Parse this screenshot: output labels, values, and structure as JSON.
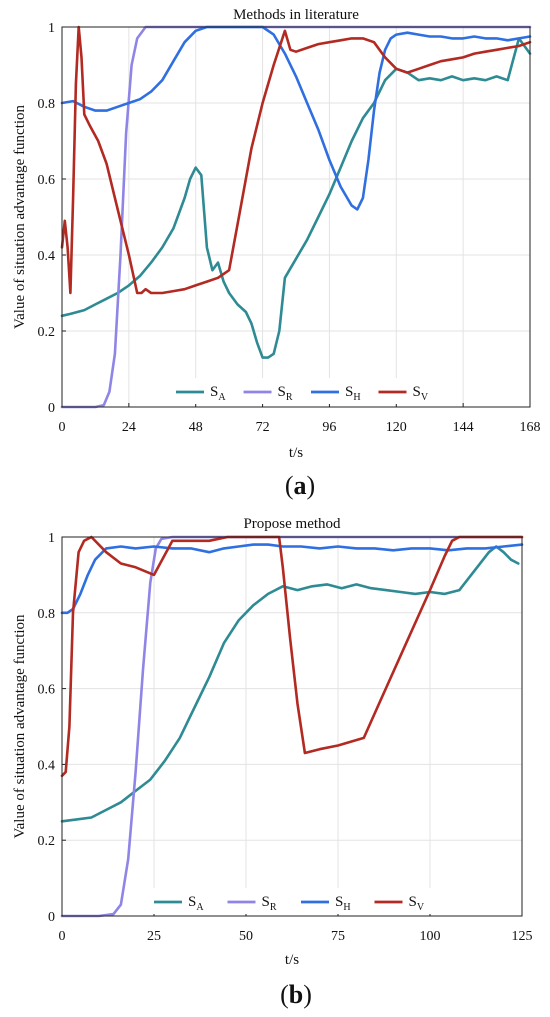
{
  "chart_data": [
    {
      "type": "line",
      "title": "Methods in literature",
      "xlabel": "t/s",
      "ylabel": "Value of situation advantage function",
      "panel_label": "a",
      "xlim": [
        0,
        168
      ],
      "ylim": [
        0,
        1
      ],
      "xticks": [
        "0",
        "24",
        "48",
        "72",
        "96",
        "120",
        "144",
        "168"
      ],
      "yticks": [
        "0",
        "0.2",
        "0.4",
        "0.6",
        "0.8",
        "1"
      ],
      "grid": true,
      "legend_position": "bottom-center",
      "series": [
        {
          "name": "S",
          "subscript": "A",
          "color": "#2e8b94",
          "x": [
            0,
            3,
            8,
            12,
            16,
            20,
            24,
            28,
            32,
            36,
            40,
            44,
            46,
            48,
            50,
            52,
            54,
            56,
            58,
            60,
            63,
            66,
            68,
            70,
            72,
            74,
            76,
            78,
            80,
            84,
            88,
            92,
            96,
            100,
            104,
            108,
            112,
            116,
            120,
            124,
            128,
            132,
            136,
            140,
            144,
            148,
            152,
            156,
            160,
            164,
            168
          ],
          "y": [
            0.24,
            0.245,
            0.255,
            0.27,
            0.285,
            0.3,
            0.32,
            0.345,
            0.38,
            0.42,
            0.47,
            0.55,
            0.6,
            0.63,
            0.61,
            0.42,
            0.36,
            0.38,
            0.33,
            0.3,
            0.27,
            0.25,
            0.22,
            0.17,
            0.13,
            0.13,
            0.14,
            0.2,
            0.34,
            0.39,
            0.44,
            0.5,
            0.56,
            0.63,
            0.7,
            0.76,
            0.8,
            0.86,
            0.89,
            0.88,
            0.86,
            0.865,
            0.86,
            0.87,
            0.86,
            0.865,
            0.86,
            0.87,
            0.86,
            0.97,
            0.93
          ]
        },
        {
          "name": "S",
          "subscript": "R",
          "color": "#8f85e6",
          "x": [
            0,
            6,
            12,
            15,
            17,
            19,
            21,
            23,
            25,
            27,
            30,
            35,
            168
          ],
          "y": [
            0,
            0,
            0,
            0.005,
            0.04,
            0.14,
            0.4,
            0.72,
            0.9,
            0.97,
            1,
            1,
            1
          ]
        },
        {
          "name": "S",
          "subscript": "H",
          "color": "#2f6fe0",
          "x": [
            0,
            4,
            8,
            12,
            16,
            20,
            24,
            28,
            32,
            36,
            40,
            44,
            48,
            52,
            56,
            60,
            64,
            68,
            72,
            76,
            80,
            84,
            88,
            92,
            96,
            100,
            104,
            106,
            108,
            110,
            112,
            114,
            116,
            118,
            120,
            124,
            128,
            132,
            136,
            140,
            144,
            148,
            152,
            156,
            160,
            164,
            168
          ],
          "y": [
            0.8,
            0.805,
            0.79,
            0.78,
            0.78,
            0.79,
            0.8,
            0.81,
            0.83,
            0.86,
            0.91,
            0.96,
            0.99,
            1,
            1,
            1,
            1,
            1,
            1,
            0.98,
            0.93,
            0.87,
            0.8,
            0.73,
            0.65,
            0.58,
            0.53,
            0.52,
            0.55,
            0.65,
            0.78,
            0.88,
            0.94,
            0.97,
            0.98,
            0.985,
            0.98,
            0.975,
            0.975,
            0.97,
            0.97,
            0.975,
            0.97,
            0.97,
            0.965,
            0.97,
            0.975
          ]
        },
        {
          "name": "S",
          "subscript": "V",
          "color": "#b22a22",
          "x": [
            0,
            1,
            2,
            3,
            4,
            5,
            6,
            7,
            8,
            10,
            13,
            16,
            20,
            24,
            27,
            28.5,
            30,
            32,
            36,
            40,
            44,
            48,
            52,
            56,
            60,
            64,
            68,
            72,
            76,
            80,
            82,
            84,
            88,
            92,
            96,
            100,
            104,
            108,
            112,
            116,
            120,
            124,
            128,
            132,
            136,
            140,
            144,
            148,
            152,
            156,
            160,
            164,
            168
          ],
          "y": [
            0.42,
            0.49,
            0.42,
            0.3,
            0.55,
            0.85,
            1,
            0.92,
            0.77,
            0.74,
            0.7,
            0.64,
            0.52,
            0.4,
            0.3,
            0.3,
            0.31,
            0.3,
            0.3,
            0.305,
            0.31,
            0.32,
            0.33,
            0.34,
            0.36,
            0.52,
            0.68,
            0.8,
            0.9,
            0.99,
            0.94,
            0.935,
            0.945,
            0.955,
            0.96,
            0.965,
            0.97,
            0.97,
            0.96,
            0.92,
            0.89,
            0.88,
            0.89,
            0.9,
            0.91,
            0.915,
            0.92,
            0.93,
            0.935,
            0.94,
            0.945,
            0.95,
            0.96
          ]
        }
      ]
    },
    {
      "type": "line",
      "title": "Propose method",
      "xlabel": "t/s",
      "ylabel": "Value of situation advantage function",
      "panel_label": "b",
      "xlim": [
        0,
        125
      ],
      "ylim": [
        0,
        1
      ],
      "xticks": [
        "0",
        "25",
        "50",
        "75",
        "100",
        "125"
      ],
      "yticks": [
        "0",
        "0.2",
        "0.4",
        "0.6",
        "0.8",
        "1"
      ],
      "grid": true,
      "legend_position": "bottom-center",
      "series": [
        {
          "name": "S",
          "subscript": "A",
          "color": "#2e8b94",
          "x": [
            0,
            4,
            8,
            12,
            16,
            20,
            24,
            28,
            32,
            36,
            40,
            44,
            48,
            52,
            56,
            58,
            60,
            64,
            68,
            72,
            76,
            80,
            84,
            88,
            92,
            96,
            100,
            104,
            108,
            112,
            116,
            118,
            120,
            122,
            124
          ],
          "y": [
            0.25,
            0.255,
            0.26,
            0.28,
            0.3,
            0.33,
            0.36,
            0.41,
            0.47,
            0.55,
            0.63,
            0.72,
            0.78,
            0.82,
            0.85,
            0.86,
            0.87,
            0.86,
            0.87,
            0.875,
            0.865,
            0.875,
            0.865,
            0.86,
            0.855,
            0.85,
            0.855,
            0.85,
            0.86,
            0.91,
            0.96,
            0.975,
            0.96,
            0.94,
            0.93
          ]
        },
        {
          "name": "S",
          "subscript": "R",
          "color": "#8f85e6",
          "x": [
            0,
            10,
            14,
            16,
            18,
            20,
            22,
            24,
            25.5,
            27,
            30,
            125
          ],
          "y": [
            0,
            0,
            0.005,
            0.03,
            0.15,
            0.38,
            0.65,
            0.88,
            0.97,
            0.995,
            1,
            1
          ]
        },
        {
          "name": "S",
          "subscript": "H",
          "color": "#2f6fe0",
          "x": [
            0,
            1.5,
            3,
            5,
            7,
            9,
            12,
            16,
            20,
            25,
            30,
            35,
            40,
            44,
            48,
            52,
            56,
            60,
            65,
            70,
            75,
            80,
            85,
            90,
            95,
            100,
            105,
            110,
            115,
            120,
            125
          ],
          "y": [
            0.8,
            0.8,
            0.81,
            0.85,
            0.9,
            0.94,
            0.97,
            0.975,
            0.97,
            0.975,
            0.97,
            0.97,
            0.96,
            0.97,
            0.975,
            0.98,
            0.98,
            0.975,
            0.975,
            0.97,
            0.975,
            0.97,
            0.97,
            0.965,
            0.97,
            0.97,
            0.965,
            0.97,
            0.97,
            0.975,
            0.98
          ]
        },
        {
          "name": "S",
          "subscript": "V",
          "color": "#b22a22",
          "x": [
            0,
            1,
            2,
            3,
            4.5,
            6,
            8,
            12,
            16,
            20,
            25,
            30,
            35,
            40,
            45,
            50,
            55,
            59,
            60,
            62,
            64,
            66,
            70,
            75,
            82,
            88,
            94,
            100,
            104,
            106,
            108,
            115,
            125
          ],
          "y": [
            0.37,
            0.38,
            0.5,
            0.8,
            0.96,
            0.99,
            1,
            0.96,
            0.93,
            0.92,
            0.9,
            0.99,
            0.99,
            0.99,
            1,
            1,
            1,
            1,
            0.92,
            0.73,
            0.56,
            0.43,
            0.44,
            0.45,
            0.47,
            0.6,
            0.73,
            0.86,
            0.95,
            0.99,
            1,
            1,
            1
          ]
        }
      ]
    }
  ]
}
